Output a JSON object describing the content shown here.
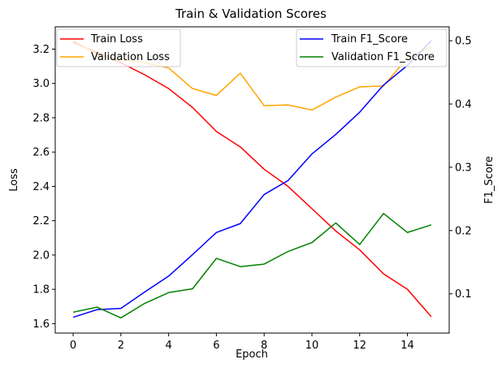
{
  "chart_data": {
    "type": "line",
    "title": "Train & Validation Scores",
    "xlabel": "Epoch",
    "ylabel_left": "Loss",
    "ylabel_right": "F1_Score",
    "x": [
      0,
      1,
      2,
      3,
      4,
      5,
      6,
      7,
      8,
      9,
      10,
      11,
      12,
      13,
      14,
      15
    ],
    "xlim": [
      -0.75,
      15.75
    ],
    "xticks": [
      0,
      2,
      4,
      6,
      8,
      10,
      12,
      14
    ],
    "ylim_left": [
      1.545,
      3.33
    ],
    "yticks_left": [
      1.6,
      1.8,
      2.0,
      2.2,
      2.4,
      2.6,
      2.8,
      3.0,
      3.2
    ],
    "ylim_right": [
      0.038,
      0.522
    ],
    "yticks_right": [
      0.1,
      0.2,
      0.3,
      0.4,
      0.5
    ],
    "grid": false,
    "left_series": [
      {
        "name": "Train Loss",
        "color": "#ff0000",
        "values": [
          3.24,
          3.18,
          3.12,
          3.05,
          2.97,
          2.86,
          2.72,
          2.63,
          2.5,
          2.4,
          2.27,
          2.14,
          2.03,
          1.89,
          1.8,
          1.64
        ]
      },
      {
        "name": "Validation Loss",
        "color": "#ffa500",
        "values": [
          3.25,
          3.17,
          3.14,
          3.12,
          3.09,
          2.97,
          2.93,
          3.06,
          2.87,
          2.875,
          2.845,
          2.92,
          2.98,
          2.985,
          3.15,
          3.215
        ]
      }
    ],
    "right_series": [
      {
        "name": "Train F1_Score",
        "color": "#0000ff",
        "values": [
          0.063,
          0.075,
          0.077,
          0.103,
          0.128,
          0.162,
          0.197,
          0.211,
          0.257,
          0.279,
          0.321,
          0.352,
          0.387,
          0.43,
          0.461,
          0.5
        ]
      },
      {
        "name": "Validation F1_Score",
        "color": "#008000",
        "values": [
          0.071,
          0.079,
          0.062,
          0.085,
          0.102,
          0.108,
          0.156,
          0.143,
          0.147,
          0.167,
          0.181,
          0.212,
          0.178,
          0.227,
          0.197,
          0.209
        ]
      }
    ],
    "legend_left_position": "upper-left",
    "legend_right_position": "upper-right"
  }
}
